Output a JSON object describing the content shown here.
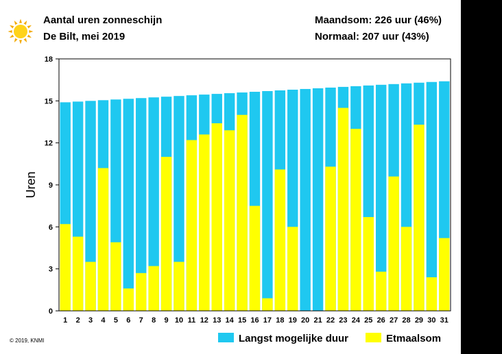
{
  "header": {
    "title": "Aantal uren zonneschijn",
    "subtitle": "De Bilt, mei 2019",
    "maandsom": "Maandsom: 226 uur (46%)",
    "normaal": "Normaal: 207 uur (43%)"
  },
  "footer": {
    "copyright": "© 2019, KNMI"
  },
  "colors": {
    "max_duration": "#1fc8f0",
    "actual": "#ffff00",
    "sun_core": "#ffd31a",
    "sun_rays": "#f2a900"
  },
  "chart_data": {
    "type": "bar",
    "title": "Aantal uren zonneschijn",
    "ylabel": "Uren",
    "xlabel": "",
    "ylim": [
      0,
      18
    ],
    "yticks": [
      0,
      3,
      6,
      9,
      12,
      15,
      18
    ],
    "categories": [
      "1",
      "2",
      "3",
      "4",
      "5",
      "6",
      "7",
      "8",
      "9",
      "10",
      "11",
      "12",
      "13",
      "14",
      "15",
      "16",
      "17",
      "18",
      "19",
      "20",
      "21",
      "22",
      "23",
      "24",
      "25",
      "26",
      "27",
      "28",
      "29",
      "30",
      "31"
    ],
    "series": [
      {
        "name": "Langst mogelijke duur",
        "values": [
          14.9,
          14.95,
          15.0,
          15.05,
          15.1,
          15.15,
          15.2,
          15.25,
          15.3,
          15.35,
          15.4,
          15.45,
          15.5,
          15.55,
          15.6,
          15.65,
          15.7,
          15.75,
          15.8,
          15.85,
          15.9,
          15.95,
          16.0,
          16.05,
          16.1,
          16.15,
          16.2,
          16.25,
          16.3,
          16.35,
          16.4
        ]
      },
      {
        "name": "Etmaalsom",
        "values": [
          6.2,
          5.3,
          3.5,
          10.2,
          4.9,
          1.6,
          2.7,
          3.2,
          11.0,
          3.5,
          12.2,
          12.6,
          13.4,
          12.9,
          14.0,
          7.5,
          0.9,
          10.1,
          6.0,
          0.0,
          0.0,
          10.3,
          14.5,
          13.0,
          6.7,
          2.8,
          9.6,
          6.0,
          13.3,
          2.4,
          5.2
        ]
      }
    ],
    "legend": [
      "Langst mogelijke duur",
      "Etmaalsom"
    ],
    "legend_position": "bottom-right",
    "grid": false
  }
}
